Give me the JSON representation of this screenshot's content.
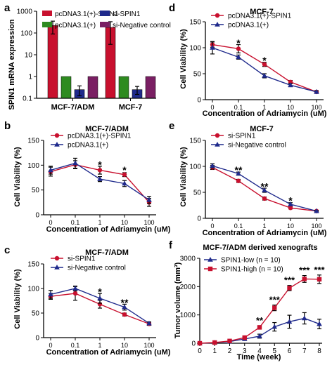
{
  "colors": {
    "red": "#c8102e",
    "blue": "#1f2a8c",
    "green": "#2e8b20",
    "purple": "#7a1f63",
    "axis": "#000000"
  },
  "chart_data": [
    {
      "id": "a",
      "panel_letter": "a",
      "type": "bar",
      "title": "",
      "ylabel": "SPIN1 mRNA expression",
      "xlabel": "",
      "yscale": "log",
      "ylim": [
        0.1,
        1000
      ],
      "yticks": [
        "1000",
        "100",
        "10",
        "1",
        "0.1"
      ],
      "categories": [
        "MCF-7/ADM",
        "MCF-7"
      ],
      "legend": [
        "pcDNA3.1(+)-SPIN1",
        "pcDNA3.1(+)",
        "si-SPIN1",
        "si-Negative control"
      ],
      "series": [
        {
          "name": "pcDNA3.1(+)-SPIN1",
          "color": "#c8102e",
          "values": [
            220,
            180
          ],
          "err": [
            130,
            150
          ]
        },
        {
          "name": "pcDNA3.1(+)",
          "color": "#2e8b20",
          "values": [
            1,
            1
          ],
          "err": [
            0,
            0
          ]
        },
        {
          "name": "si-SPIN1",
          "color": "#1f2a8c",
          "values": [
            0.25,
            0.25
          ],
          "err": [
            0.12,
            0.1
          ]
        },
        {
          "name": "si-Negative control",
          "color": "#7a1f63",
          "values": [
            1,
            1
          ],
          "err": [
            0,
            0
          ]
        }
      ]
    },
    {
      "id": "b",
      "panel_letter": "b",
      "type": "line",
      "title": "MCF-7/ADM",
      "xlabel": "Concentration of Adriamycin (uM)",
      "ylabel": "Cell Viability (%)",
      "x": [
        "0",
        "0.1",
        "1",
        "10",
        "100"
      ],
      "ylim": [
        0,
        150
      ],
      "yticks": [
        "150",
        "100",
        "50",
        "0"
      ],
      "series": [
        {
          "name": "pcDNA3.1(+)-SPIN1",
          "color": "#c8102e",
          "marker": "circle",
          "values": [
            87,
            101,
            90,
            81,
            25
          ],
          "err": [
            9,
            8,
            8,
            4,
            8
          ]
        },
        {
          "name": "pcDNA3.1(+)",
          "color": "#1f2a8c",
          "marker": "triangle",
          "values": [
            90,
            104,
            72,
            63,
            30
          ],
          "err": [
            8,
            10,
            5,
            6,
            7
          ]
        }
      ],
      "annotations": [
        {
          "x": "1",
          "y": 100,
          "text": "*"
        },
        {
          "x": "10",
          "y": 89,
          "text": "*"
        }
      ]
    },
    {
      "id": "c",
      "panel_letter": "c",
      "type": "line",
      "title": "MCF-7/ADM",
      "xlabel": "Concentration of Adriamycin (uM)",
      "ylabel": "Cell Viability (%)",
      "x": [
        "0",
        "0.1",
        "1",
        "10",
        "100"
      ],
      "ylim": [
        0,
        150
      ],
      "yticks": [
        "150",
        "100",
        "50",
        "0"
      ],
      "series": [
        {
          "name": "si-SPIN1",
          "color": "#c8102e",
          "marker": "circle",
          "values": [
            84,
            90,
            68,
            47,
            28
          ],
          "err": [
            6,
            14,
            8,
            3,
            3
          ]
        },
        {
          "name": "si-Negative control",
          "color": "#1f2a8c",
          "marker": "triangle",
          "values": [
            88,
            100,
            80,
            62,
            29
          ],
          "err": [
            8,
            5,
            10,
            6,
            3
          ]
        }
      ],
      "annotations": [
        {
          "x": "1",
          "y": 92,
          "text": "*"
        },
        {
          "x": "10",
          "y": 70,
          "text": "**"
        }
      ]
    },
    {
      "id": "d",
      "panel_letter": "d",
      "type": "line",
      "title": "MCF-7",
      "xlabel": "Concentration of Adriamycin (uM)",
      "ylabel": "Cell Viability (%)",
      "x": [
        "0",
        "0.1",
        "1",
        "10",
        "100"
      ],
      "ylim": [
        0,
        150
      ],
      "yticks": [
        "150",
        "100",
        "50",
        "0"
      ],
      "series": [
        {
          "name": "pcDNA3.1(+)-SPIN1",
          "color": "#c8102e",
          "marker": "circle",
          "values": [
            106,
            98,
            68,
            34,
            15
          ],
          "err": [
            5,
            8,
            4,
            3,
            2
          ]
        },
        {
          "name": "pcDNA3.1(+)",
          "color": "#1f2a8c",
          "marker": "triangle",
          "values": [
            100,
            82,
            46,
            28,
            15
          ],
          "err": [
            12,
            4,
            4,
            3,
            2
          ]
        }
      ],
      "annotations": [
        {
          "x": "0.1",
          "y": 108,
          "text": "*"
        },
        {
          "x": "1",
          "y": 74,
          "text": "*"
        }
      ]
    },
    {
      "id": "e",
      "panel_letter": "e",
      "type": "line",
      "title": "MCF-7",
      "xlabel": "Concentration of Adriamycin (uM)",
      "ylabel": "Cell Viability (%)",
      "x": [
        "0",
        "0.1",
        "1",
        "10",
        "100"
      ],
      "ylim": [
        0,
        150
      ],
      "yticks": [
        "150",
        "100",
        "50",
        "0"
      ],
      "series": [
        {
          "name": "si-SPIN1",
          "color": "#c8102e",
          "marker": "circle",
          "values": [
            98,
            72,
            38,
            20,
            14
          ],
          "err": [
            4,
            3,
            3,
            2,
            1
          ]
        },
        {
          "name": "si-Negative control",
          "color": "#1f2a8c",
          "marker": "triangle",
          "values": [
            101,
            86,
            54,
            27,
            14
          ],
          "err": [
            4,
            3,
            4,
            3,
            1
          ]
        }
      ],
      "annotations": [
        {
          "x": "0.1",
          "y": 92,
          "text": "**"
        },
        {
          "x": "1",
          "y": 60,
          "text": "**"
        },
        {
          "x": "10",
          "y": 33,
          "text": "*"
        }
      ]
    },
    {
      "id": "f",
      "panel_letter": "f",
      "type": "line",
      "title": "MCF-7/ADM derived xenografts",
      "xlabel": "Time (week)",
      "ylabel": "Tumor volume (mm³)",
      "x": [
        0,
        1,
        2,
        3,
        4,
        5,
        6,
        7,
        8
      ],
      "xticks": [
        "0",
        "1",
        "2",
        "3",
        "4",
        "5",
        "6",
        "7",
        "8"
      ],
      "ylim": [
        0,
        3000
      ],
      "yticks": [
        "3000",
        "2000",
        "1000",
        "0"
      ],
      "series": [
        {
          "name": "SPIN1-low (n = 10)",
          "color": "#1f2a8c",
          "marker": "triangle",
          "values": [
            0,
            20,
            60,
            150,
            250,
            580,
            760,
            880,
            680
          ],
          "err": [
            0,
            5,
            15,
            30,
            70,
            150,
            230,
            200,
            170
          ]
        },
        {
          "name": "SPIN1-high (n = 10)",
          "color": "#c8102e",
          "marker": "square",
          "values": [
            0,
            25,
            80,
            200,
            560,
            1250,
            1950,
            2270,
            2260
          ],
          "err": [
            0,
            5,
            15,
            30,
            60,
            100,
            90,
            120,
            150
          ]
        }
      ],
      "annotations": [
        {
          "x": 4,
          "text": "**"
        },
        {
          "x": 5,
          "text": "***"
        },
        {
          "x": 6,
          "text": "***"
        },
        {
          "x": 7,
          "text": "***"
        },
        {
          "x": 8,
          "text": "***"
        }
      ]
    }
  ]
}
